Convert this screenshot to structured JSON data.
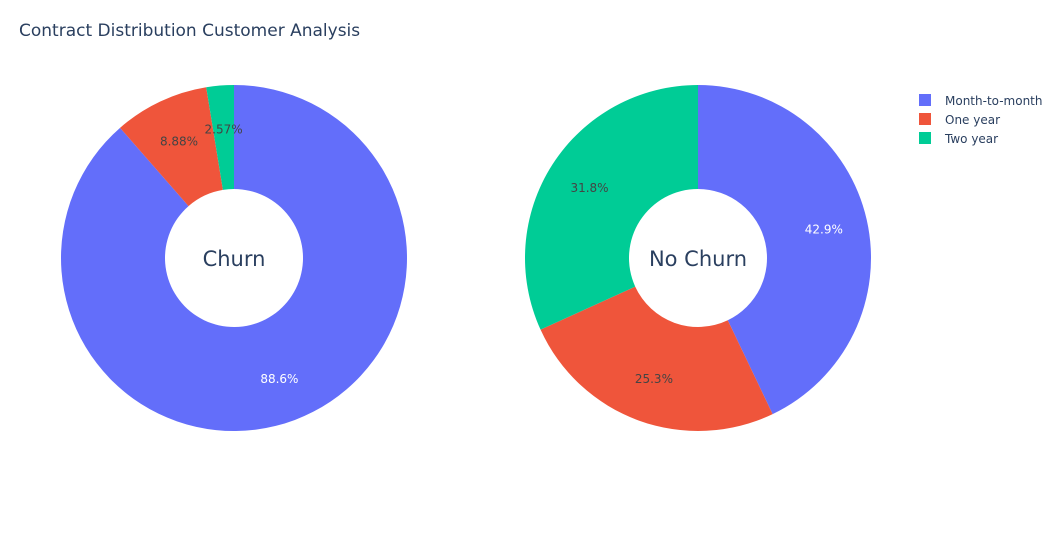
{
  "chart_data": {
    "type": "pie",
    "title": "Contract Distribution Customer Analysis",
    "legend_position": "top-right",
    "categories": [
      "Month-to-month",
      "One year",
      "Two year"
    ],
    "colors": {
      "Month-to-month": "#636efa",
      "One year": "#EF553B",
      "Two year": "#00cc96"
    },
    "pies": [
      {
        "label": "Churn",
        "slices": [
          {
            "category": "Month-to-month",
            "value": 88.6,
            "text": "88.6%"
          },
          {
            "category": "One year",
            "value": 8.88,
            "text": "8.88%"
          },
          {
            "category": "Two year",
            "value": 2.57,
            "text": "2.57%"
          }
        ]
      },
      {
        "label": "No Churn",
        "slices": [
          {
            "category": "Month-to-month",
            "value": 42.9,
            "text": "42.9%"
          },
          {
            "category": "One year",
            "value": 25.3,
            "text": "25.3%"
          },
          {
            "category": "Two year",
            "value": 31.8,
            "text": "31.8%"
          }
        ]
      }
    ]
  }
}
